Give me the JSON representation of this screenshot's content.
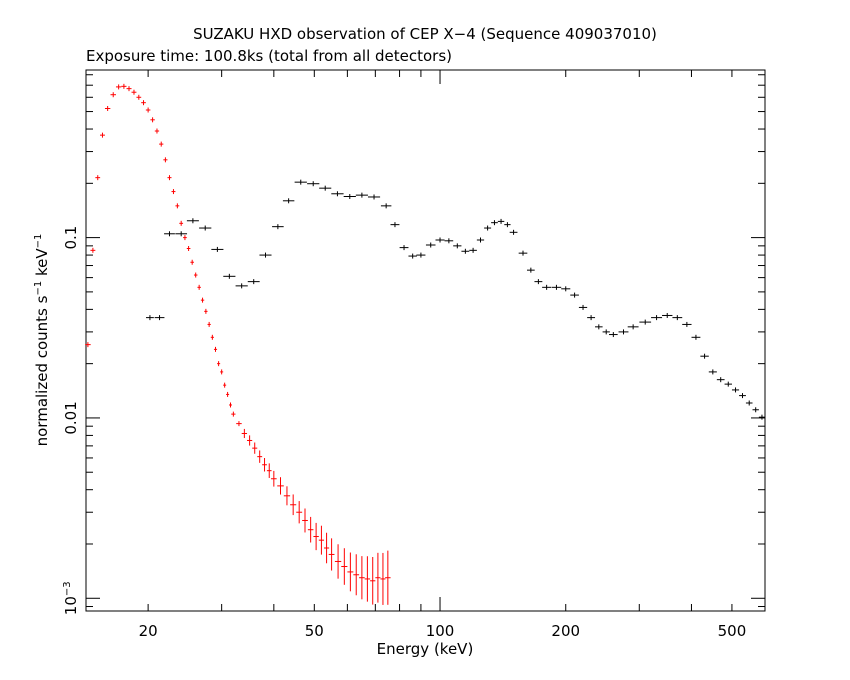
{
  "chart_data": {
    "type": "scatter",
    "title": "SUZAKU HXD observation of CEP X−4 (Sequence 409037010)",
    "subtitle": "Exposure time: 100.8ks (total from all detectors)",
    "xlabel": "Energy (keV)",
    "ylabel": {
      "base": "normalized counts s",
      "sup1": "−1",
      "mid": " keV",
      "sup2": "−1"
    },
    "xscale": "log",
    "yscale": "log",
    "xlim": [
      14.2,
      600
    ],
    "ylim": [
      0.00085,
      0.85
    ],
    "xticks": [
      {
        "value": 20,
        "label": "20"
      },
      {
        "value": 50,
        "label": "50"
      },
      {
        "value": 100,
        "label": "100"
      },
      {
        "value": 200,
        "label": "200"
      },
      {
        "value": 500,
        "label": "500"
      }
    ],
    "yticks": [
      {
        "value": 0.001,
        "base": "10",
        "sup": "−3"
      },
      {
        "value": 0.01,
        "label": "0.01"
      },
      {
        "value": 0.1,
        "label": "0.1"
      }
    ],
    "grid": false,
    "legend": "none",
    "series": [
      {
        "color": "#ff0000",
        "points": [
          [
            14.35,
            0.0255
          ],
          [
            14.75,
            0.085
          ],
          [
            15.15,
            0.215
          ],
          [
            15.55,
            0.37
          ],
          [
            16.0,
            0.52
          ],
          [
            16.5,
            0.62
          ],
          [
            17.0,
            0.685
          ],
          [
            17.5,
            0.69
          ],
          [
            18.0,
            0.67
          ],
          [
            18.5,
            0.64
          ],
          [
            19.0,
            0.6
          ],
          [
            19.5,
            0.56
          ],
          [
            20.0,
            0.51
          ],
          [
            20.5,
            0.45
          ],
          [
            21.0,
            0.39
          ],
          [
            21.5,
            0.33
          ],
          [
            22.0,
            0.27
          ],
          [
            22.5,
            0.215
          ],
          [
            23.0,
            0.18
          ],
          [
            23.5,
            0.15
          ],
          [
            24.0,
            0.12
          ],
          [
            24.5,
            0.1
          ],
          [
            25.0,
            0.087
          ],
          [
            25.5,
            0.073
          ],
          [
            26.0,
            0.062
          ],
          [
            26.5,
            0.053
          ],
          [
            27.0,
            0.045
          ],
          [
            27.5,
            0.039
          ],
          [
            28.0,
            0.033
          ],
          [
            28.5,
            0.028
          ],
          [
            29.0,
            0.024
          ],
          [
            29.5,
            0.02
          ],
          [
            30.0,
            0.018
          ],
          [
            30.5,
            0.0152
          ],
          [
            31.0,
            0.0135
          ],
          [
            31.5,
            0.0118
          ],
          [
            32.0,
            0.0105
          ],
          [
            33.0,
            0.0093
          ],
          [
            34.0,
            0.0082
          ],
          [
            35.0,
            0.0075
          ],
          [
            36.0,
            0.0068
          ],
          [
            37.0,
            0.0061
          ],
          [
            38.0,
            0.0055
          ],
          [
            39.0,
            0.0051
          ],
          [
            40.0,
            0.0046
          ],
          [
            41.5,
            0.0042
          ],
          [
            43.0,
            0.0037
          ],
          [
            44.5,
            0.0033
          ],
          [
            46.0,
            0.003
          ],
          [
            47.5,
            0.0027
          ],
          [
            49.0,
            0.0024
          ],
          [
            50.5,
            0.0022
          ],
          [
            52.0,
            0.0021
          ],
          [
            53.5,
            0.0019
          ],
          [
            55.0,
            0.00175
          ],
          [
            57.0,
            0.0016
          ],
          [
            59.0,
            0.0015
          ],
          [
            61.0,
            0.0014
          ],
          [
            63.0,
            0.00135
          ],
          [
            65.0,
            0.0013
          ],
          [
            67.0,
            0.00128
          ],
          [
            69.0,
            0.00125
          ],
          [
            71.0,
            0.0013
          ],
          [
            73.0,
            0.00128
          ],
          [
            75.0,
            0.0013
          ]
        ]
      },
      {
        "color": "#000000",
        "points": [
          [
            20.2,
            0.036
          ],
          [
            21.3,
            0.036
          ],
          [
            22.5,
            0.105
          ],
          [
            24.0,
            0.105
          ],
          [
            25.6,
            0.124
          ],
          [
            27.4,
            0.113
          ],
          [
            29.3,
            0.086
          ],
          [
            31.3,
            0.061
          ],
          [
            33.5,
            0.054
          ],
          [
            35.8,
            0.057
          ],
          [
            38.2,
            0.08
          ],
          [
            40.9,
            0.115
          ],
          [
            43.4,
            0.16
          ],
          [
            46.4,
            0.203
          ],
          [
            49.7,
            0.199
          ],
          [
            53.1,
            0.188
          ],
          [
            56.8,
            0.175
          ],
          [
            60.8,
            0.169
          ],
          [
            65.0,
            0.172
          ],
          [
            69.5,
            0.168
          ],
          [
            74.3,
            0.15
          ],
          [
            78.0,
            0.118
          ],
          [
            82.0,
            0.088
          ],
          [
            86.0,
            0.079
          ],
          [
            90.0,
            0.08
          ],
          [
            95.0,
            0.091
          ],
          [
            100.0,
            0.097
          ],
          [
            105.0,
            0.096
          ],
          [
            110.0,
            0.09
          ],
          [
            115.0,
            0.084
          ],
          [
            120.0,
            0.085
          ],
          [
            125.0,
            0.097
          ],
          [
            130.0,
            0.113
          ],
          [
            135.0,
            0.121
          ],
          [
            140.0,
            0.123
          ],
          [
            145.0,
            0.118
          ],
          [
            150.0,
            0.107
          ],
          [
            158.0,
            0.082
          ],
          [
            165.0,
            0.066
          ],
          [
            172.0,
            0.057
          ],
          [
            180.0,
            0.053
          ],
          [
            190.0,
            0.053
          ],
          [
            200.0,
            0.052
          ],
          [
            210.0,
            0.048
          ],
          [
            220.0,
            0.041
          ],
          [
            230.0,
            0.036
          ],
          [
            240.0,
            0.032
          ],
          [
            250.0,
            0.03
          ],
          [
            260.0,
            0.029
          ],
          [
            275.0,
            0.03
          ],
          [
            290.0,
            0.032
          ],
          [
            310.0,
            0.034
          ],
          [
            330.0,
            0.036
          ],
          [
            350.0,
            0.037
          ],
          [
            370.0,
            0.036
          ],
          [
            390.0,
            0.033
          ],
          [
            410.0,
            0.028
          ],
          [
            430.0,
            0.022
          ],
          [
            450.0,
            0.018
          ],
          [
            470.0,
            0.0163
          ],
          [
            490.0,
            0.0154
          ],
          [
            510.0,
            0.0143
          ],
          [
            530.0,
            0.0133
          ],
          [
            550.0,
            0.0121
          ],
          [
            570.0,
            0.0111
          ],
          [
            590.0,
            0.0101
          ]
        ]
      }
    ]
  }
}
